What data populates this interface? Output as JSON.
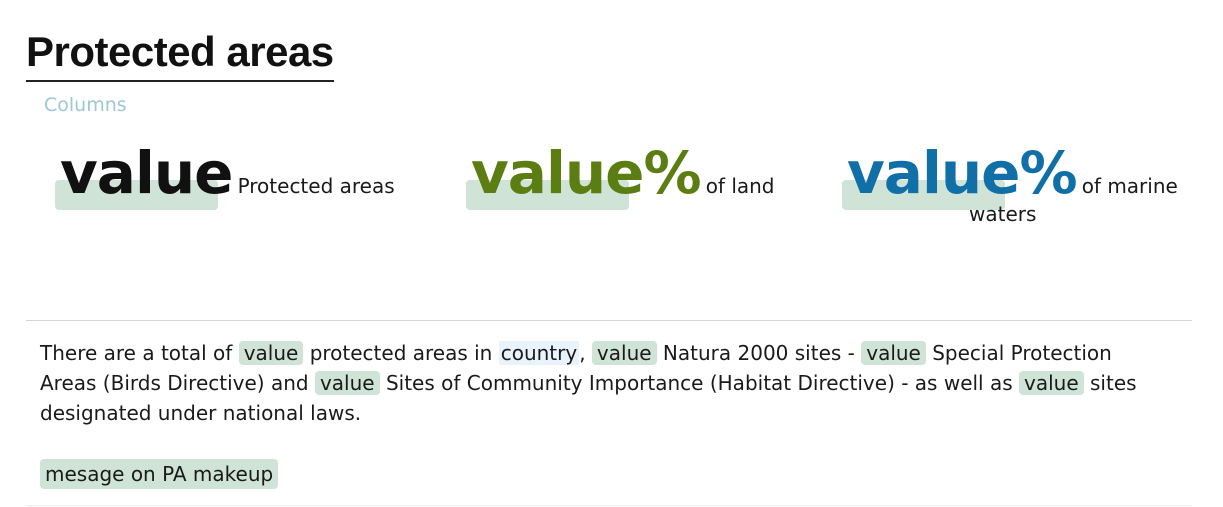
{
  "header": {
    "title": "Protected areas",
    "columns_link": "Columns"
  },
  "stats": [
    {
      "value": "value",
      "suffix": "",
      "label": "Protected areas",
      "color": "#111111"
    },
    {
      "value": "value",
      "suffix": "%",
      "label": "of land",
      "color": "#5b7d12"
    },
    {
      "value": "value",
      "suffix": "%",
      "label_line1": "of marine",
      "label_line2": "waters",
      "color": "#0f6fa6"
    }
  ],
  "summary": {
    "t1": "There are a total of",
    "v1": "value",
    "t2": "protected areas in",
    "country": "country",
    "t3": ",",
    "v2": "value",
    "t4": "Natura 2000 sites -",
    "v3": "value",
    "t5": "Special Protection Areas (Birds Directive) and",
    "v4": "value",
    "t6": "Sites of Community Importance (Habitat Directive) - as well as",
    "v5": "value",
    "t7": "sites designated under national laws."
  },
  "message": "mesage on PA makeup",
  "colors": {
    "chip_bg": "#cfe3d6",
    "link": "#9cc7d4",
    "divider": "#d6d6d6"
  }
}
